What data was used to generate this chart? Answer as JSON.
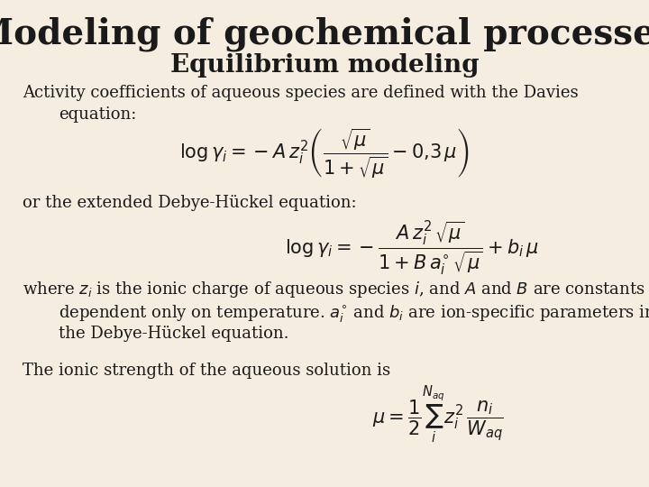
{
  "background_color": "#f5ede0",
  "title": "Modeling of geochemical processes",
  "subtitle": "Equilibrium modeling",
  "title_fontsize": 28,
  "subtitle_fontsize": 20,
  "text_fontsize": 13,
  "title_color": "#1a1a1a",
  "text_color": "#1a1a1a",
  "line1": "Activity coefficients of aqueous species are defined with the Davies",
  "line1b": "equation:",
  "line2": "or the extended Debye-Hückel equation:",
  "line3c": "the Debye-Hückel equation.",
  "line4": "The ionic strength of the aqueous solution is"
}
